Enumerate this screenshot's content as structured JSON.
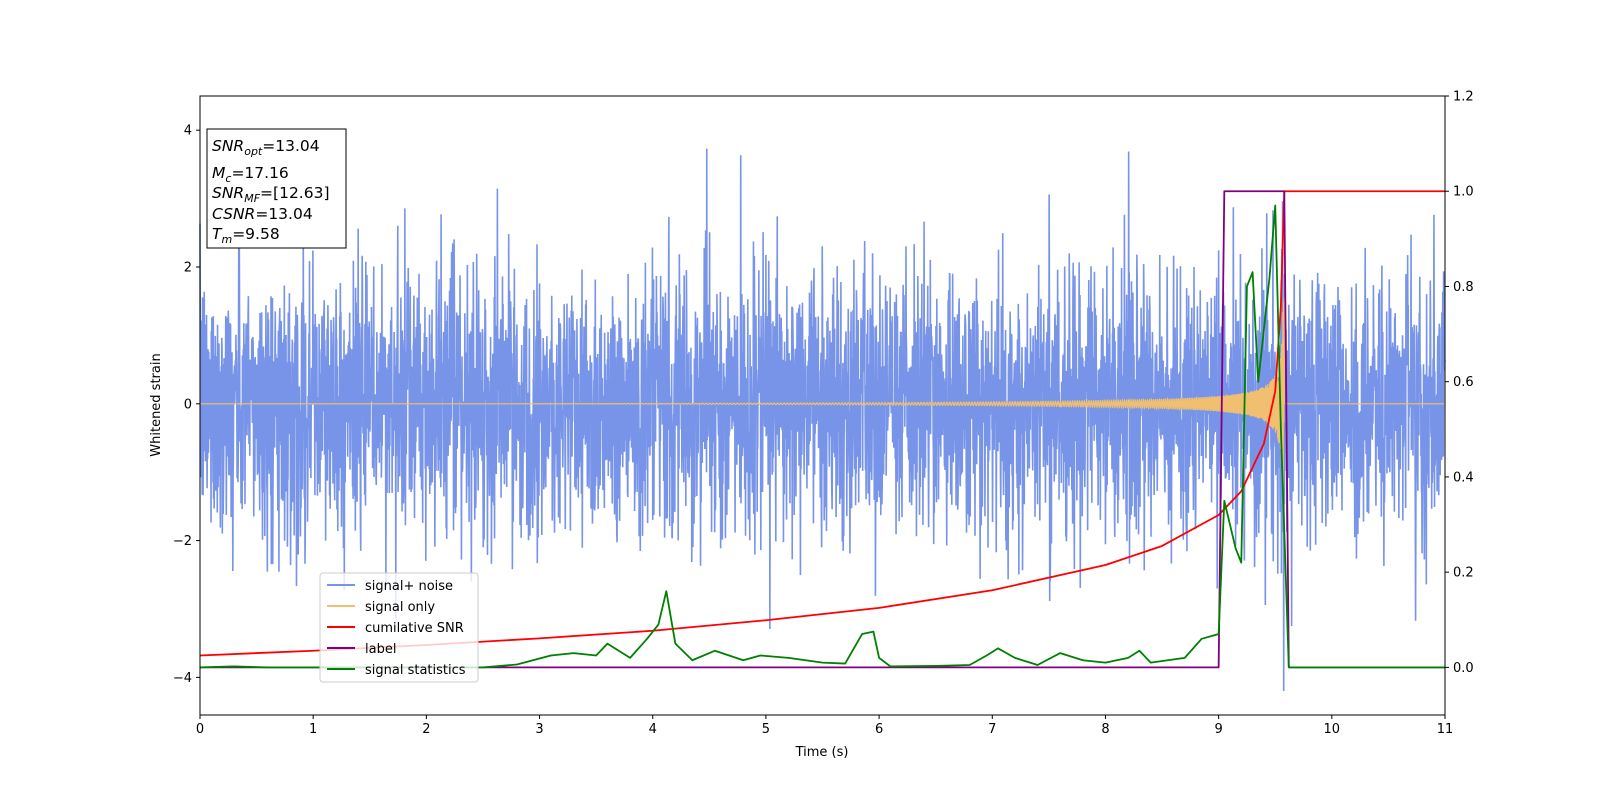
{
  "chart_data": {
    "type": "line",
    "title": "",
    "xlabel": "Time (s)",
    "ylabel": "Whitened strain",
    "xlim": [
      0,
      11
    ],
    "ylim_left": [
      -4.55,
      4.5
    ],
    "ylim_right": [
      -0.1,
      1.2
    ],
    "x_ticks": [
      "0",
      "1",
      "2",
      "3",
      "4",
      "5",
      "6",
      "7",
      "8",
      "9",
      "10",
      "11"
    ],
    "y_left_ticks": [
      "4",
      "2",
      "0",
      "−2",
      "−4"
    ],
    "y_right_ticks": [
      "1.2",
      "1.0",
      "0.8",
      "0.6",
      "0.4",
      "0.2",
      "0.0"
    ],
    "grid": false,
    "legend_position": "lower-left",
    "annotation": {
      "snr_opt_label": "SNR",
      "snr_opt_sub": "opt",
      "snr_opt_value": "=13.04",
      "mc_label": "M",
      "mc_sub": "c",
      "mc_value": "=17.16",
      "snr_mf_label": "SNR",
      "snr_mf_sub": "MF",
      "snr_mf_value": "=[12.63]",
      "csnr_label": "CSNR",
      "csnr_value": "=13.04",
      "tm_label": "T",
      "tm_sub": "m",
      "tm_value": "=9.58"
    },
    "series": [
      {
        "name": "signal+ noise",
        "axis": "left",
        "color": "#7794e8",
        "description_values": "noisy whitened strain, amplitude ~N(0,1) with spikes up to about +4.1 / -4.2, from t=0 to t=11"
      },
      {
        "name": "signal only",
        "axis": "left",
        "color": "#f0c070",
        "chirp_end_time": 9.58,
        "peak_amplitude": 1.6
      },
      {
        "name": "cumilative SNR",
        "axis": "right",
        "color": "#ff0000",
        "points": [
          [
            0,
            0.025
          ],
          [
            1,
            0.035
          ],
          [
            2,
            0.047
          ],
          [
            3,
            0.061
          ],
          [
            4,
            0.077
          ],
          [
            5,
            0.099
          ],
          [
            6,
            0.125
          ],
          [
            7,
            0.162
          ],
          [
            8,
            0.215
          ],
          [
            8.5,
            0.255
          ],
          [
            9,
            0.32
          ],
          [
            9.2,
            0.37
          ],
          [
            9.4,
            0.47
          ],
          [
            9.5,
            0.58
          ],
          [
            9.55,
            0.76
          ],
          [
            9.58,
            1.0
          ],
          [
            11,
            1.0
          ]
        ]
      },
      {
        "name": "label",
        "axis": "right",
        "color": "#800080",
        "points": [
          [
            0,
            0.0
          ],
          [
            9.0,
            0.0
          ],
          [
            9.05,
            1.0
          ],
          [
            9.58,
            1.0
          ],
          [
            9.62,
            0.0
          ],
          [
            11,
            0.0
          ]
        ]
      },
      {
        "name": "signal statistics",
        "axis": "right",
        "color": "#008000",
        "points": [
          [
            0,
            0.0
          ],
          [
            0.3,
            0.002
          ],
          [
            0.6,
            0.0
          ],
          [
            2.0,
            0.0
          ],
          [
            2.5,
            0.0
          ],
          [
            2.8,
            0.006
          ],
          [
            3.1,
            0.025
          ],
          [
            3.3,
            0.03
          ],
          [
            3.5,
            0.025
          ],
          [
            3.6,
            0.05
          ],
          [
            3.8,
            0.02
          ],
          [
            3.95,
            0.06
          ],
          [
            4.05,
            0.09
          ],
          [
            4.12,
            0.16
          ],
          [
            4.2,
            0.05
          ],
          [
            4.35,
            0.015
          ],
          [
            4.55,
            0.035
          ],
          [
            4.8,
            0.015
          ],
          [
            4.95,
            0.025
          ],
          [
            5.2,
            0.02
          ],
          [
            5.5,
            0.01
          ],
          [
            5.7,
            0.008
          ],
          [
            5.85,
            0.07
          ],
          [
            5.95,
            0.075
          ],
          [
            6.0,
            0.02
          ],
          [
            6.1,
            0.002
          ],
          [
            6.5,
            0.003
          ],
          [
            6.8,
            0.005
          ],
          [
            6.95,
            0.025
          ],
          [
            7.05,
            0.04
          ],
          [
            7.2,
            0.02
          ],
          [
            7.4,
            0.005
          ],
          [
            7.6,
            0.03
          ],
          [
            7.8,
            0.015
          ],
          [
            8.0,
            0.01
          ],
          [
            8.2,
            0.02
          ],
          [
            8.3,
            0.035
          ],
          [
            8.4,
            0.01
          ],
          [
            8.7,
            0.02
          ],
          [
            8.85,
            0.06
          ],
          [
            9.0,
            0.07
          ],
          [
            9.05,
            0.35
          ],
          [
            9.15,
            0.25
          ],
          [
            9.2,
            0.22
          ],
          [
            9.25,
            0.8
          ],
          [
            9.3,
            0.83
          ],
          [
            9.35,
            0.6
          ],
          [
            9.45,
            0.82
          ],
          [
            9.5,
            0.97
          ],
          [
            9.55,
            0.5
          ],
          [
            9.62,
            0.0
          ],
          [
            11,
            0.0
          ]
        ]
      }
    ]
  }
}
